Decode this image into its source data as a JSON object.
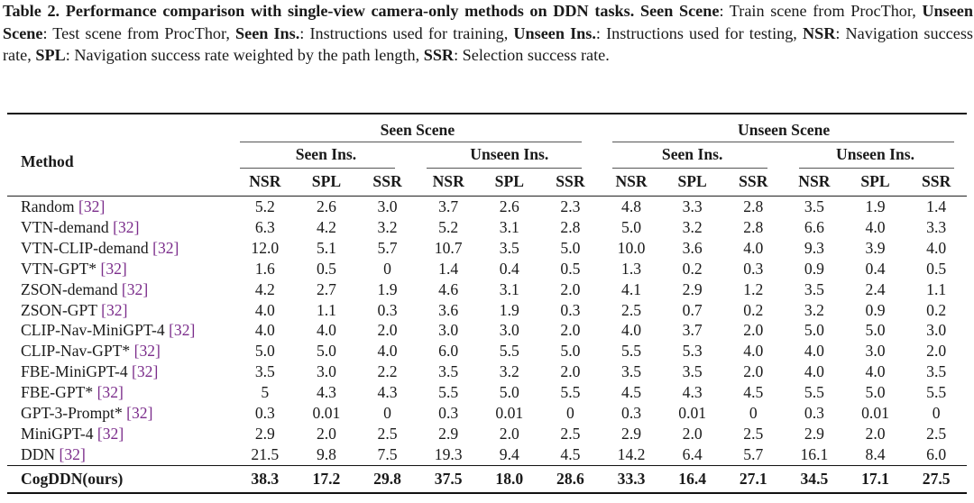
{
  "caption": {
    "label": "Table 2. Performance comparison with single-view camera-only methods on DDN tasks.",
    "defs": [
      {
        "term": "Seen Scene",
        "desc": ": Train scene from ProcThor, "
      },
      {
        "term": "Unseen Scene",
        "desc": ": Test scene from ProcThor, "
      },
      {
        "term": "Seen Ins.",
        "desc": ": Instructions used for training, "
      },
      {
        "term": "Unseen Ins.",
        "desc": ": Instructions used for testing, "
      },
      {
        "term": "NSR",
        "desc": ": Navigation success rate, "
      },
      {
        "term": "SPL",
        "desc": ": Navigation success rate weighted by the path length, "
      },
      {
        "term": "SSR",
        "desc": ": Selection success rate."
      }
    ]
  },
  "header": {
    "method": "Method",
    "groups": [
      "Seen Scene",
      "Unseen Scene"
    ],
    "subgroups": [
      "Seen Ins.",
      "Unseen Ins.",
      "Seen Ins.",
      "Unseen Ins."
    ],
    "metrics": [
      "NSR",
      "SPL",
      "SSR",
      "NSR",
      "SPL",
      "SSR",
      "NSR",
      "SPL",
      "SSR",
      "NSR",
      "SPL",
      "SSR"
    ]
  },
  "rows": [
    {
      "name": "Random",
      "cite": "[32]",
      "values": [
        "5.2",
        "2.6",
        "3.0",
        "3.7",
        "2.6",
        "2.3",
        "4.8",
        "3.3",
        "2.8",
        "3.5",
        "1.9",
        "1.4"
      ]
    },
    {
      "name": "VTN-demand",
      "cite": "[32]",
      "values": [
        "6.3",
        "4.2",
        "3.2",
        "5.2",
        "3.1",
        "2.8",
        "5.0",
        "3.2",
        "2.8",
        "6.6",
        "4.0",
        "3.3"
      ]
    },
    {
      "name": "VTN-CLIP-demand",
      "cite": "[32]",
      "values": [
        "12.0",
        "5.1",
        "5.7",
        "10.7",
        "3.5",
        "5.0",
        "10.0",
        "3.6",
        "4.0",
        "9.3",
        "3.9",
        "4.0"
      ]
    },
    {
      "name": "VTN-GPT*",
      "cite": "[32]",
      "values": [
        "1.6",
        "0.5",
        "0",
        "1.4",
        "0.4",
        "0.5",
        "1.3",
        "0.2",
        "0.3",
        "0.9",
        "0.4",
        "0.5"
      ]
    },
    {
      "name": "ZSON-demand",
      "cite": "[32]",
      "values": [
        "4.2",
        "2.7",
        "1.9",
        "4.6",
        "3.1",
        "2.0",
        "4.1",
        "2.9",
        "1.2",
        "3.5",
        "2.4",
        "1.1"
      ]
    },
    {
      "name": "ZSON-GPT",
      "cite": "[32]",
      "values": [
        "4.0",
        "1.1",
        "0.3",
        "3.6",
        "1.9",
        "0.3",
        "2.5",
        "0.7",
        "0.2",
        "3.2",
        "0.9",
        "0.2"
      ]
    },
    {
      "name": "CLIP-Nav-MiniGPT-4",
      "cite": "[32]",
      "values": [
        "4.0",
        "4.0",
        "2.0",
        "3.0",
        "3.0",
        "2.0",
        "4.0",
        "3.7",
        "2.0",
        "5.0",
        "5.0",
        "3.0"
      ]
    },
    {
      "name": "CLIP-Nav-GPT*",
      "cite": "[32]",
      "values": [
        "5.0",
        "5.0",
        "4.0",
        "6.0",
        "5.5",
        "5.0",
        "5.5",
        "5.3",
        "4.0",
        "4.0",
        "3.0",
        "2.0"
      ]
    },
    {
      "name": "FBE-MiniGPT-4",
      "cite": "[32]",
      "values": [
        "3.5",
        "3.0",
        "2.2",
        "3.5",
        "3.2",
        "2.0",
        "3.5",
        "3.5",
        "2.0",
        "4.0",
        "4.0",
        "3.5"
      ]
    },
    {
      "name": "FBE-GPT*",
      "cite": "[32]",
      "values": [
        "5",
        "4.3",
        "4.3",
        "5.5",
        "5.0",
        "5.5",
        "4.5",
        "4.3",
        "4.5",
        "5.5",
        "5.0",
        "5.5"
      ]
    },
    {
      "name": "GPT-3-Prompt*",
      "cite": "[32]",
      "values": [
        "0.3",
        "0.01",
        "0",
        "0.3",
        "0.01",
        "0",
        "0.3",
        "0.01",
        "0",
        "0.3",
        "0.01",
        "0"
      ]
    },
    {
      "name": "MiniGPT-4",
      "cite": "[32]",
      "values": [
        "2.9",
        "2.0",
        "2.5",
        "2.9",
        "2.0",
        "2.5",
        "2.9",
        "2.0",
        "2.5",
        "2.9",
        "2.0",
        "2.5"
      ]
    },
    {
      "name": "DDN",
      "cite": "[32]",
      "values": [
        "21.5",
        "9.8",
        "7.5",
        "19.3",
        "9.4",
        "4.5",
        "14.2",
        "6.4",
        "5.7",
        "16.1",
        "8.4",
        "6.0"
      ]
    }
  ],
  "ours": {
    "name": "CogDDN(ours)",
    "values": [
      "38.3",
      "17.2",
      "29.8",
      "37.5",
      "18.0",
      "28.6",
      "33.3",
      "16.4",
      "27.1",
      "34.5",
      "17.1",
      "27.5"
    ]
  }
}
